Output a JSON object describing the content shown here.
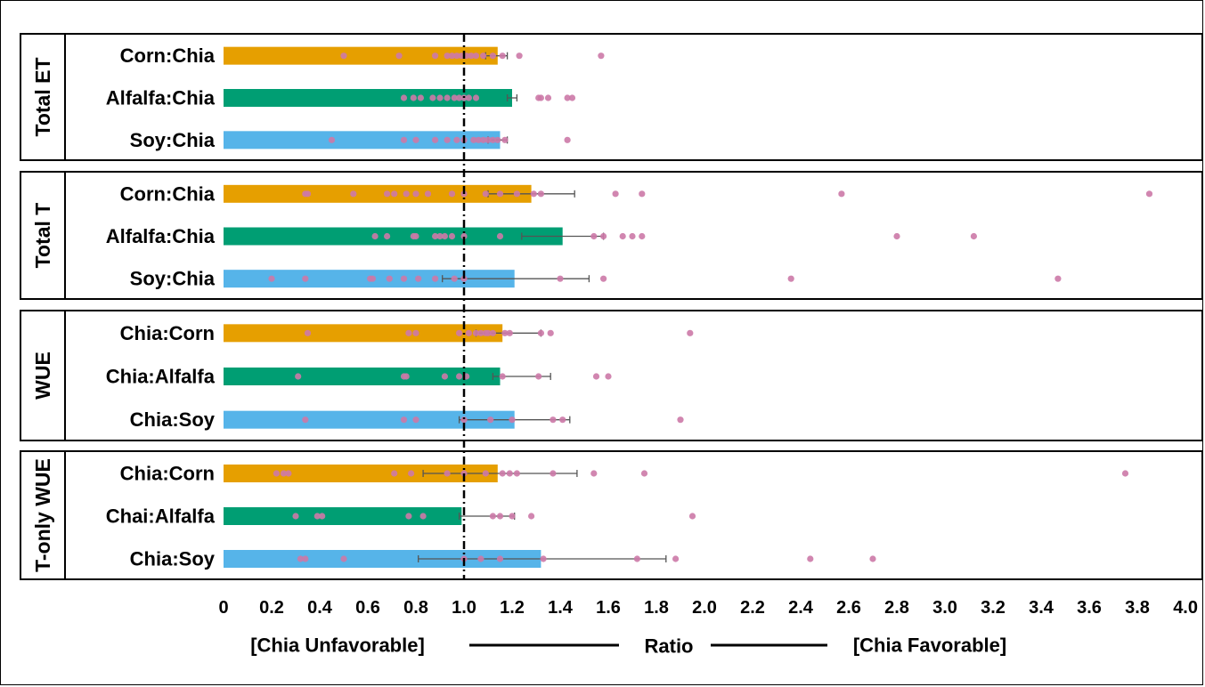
{
  "chart_data": {
    "type": "bar",
    "orientation": "horizontal",
    "xlim": [
      0,
      4.0
    ],
    "xticks": [
      "0",
      "0.2",
      "0.4",
      "0.6",
      "0.8",
      "1.0",
      "1.2",
      "1.4",
      "1.6",
      "1.8",
      "2.0",
      "2.2",
      "2.4",
      "2.6",
      "2.8",
      "3.0",
      "3.2",
      "3.4",
      "3.6",
      "3.8",
      "4.0"
    ],
    "reference_line": 1.0,
    "xlabel": "Ratio",
    "left_annotation": "[Chia Unfavorable]",
    "right_annotation": "[Chia Favorable]",
    "colors": {
      "corn": "#E69F00",
      "alfalfa": "#009E73",
      "soy": "#56B4E9",
      "points": "#CC79A7"
    },
    "panels": [
      {
        "title": "Total ET",
        "bars": [
          {
            "label": "Corn:Chia",
            "color": "corn",
            "value": 1.14,
            "err": [
              1.09,
              1.18
            ],
            "points": [
              0.5,
              0.73,
              0.88,
              0.93,
              0.95,
              0.97,
              0.99,
              1.01,
              1.03,
              1.05,
              1.08,
              1.12,
              1.16,
              1.23,
              1.57
            ]
          },
          {
            "label": "Alfalfa:Chia",
            "color": "alfalfa",
            "value": 1.2,
            "err": [
              1.18,
              1.22
            ],
            "points": [
              0.75,
              0.79,
              0.82,
              0.87,
              0.9,
              0.93,
              0.96,
              0.98,
              1.0,
              1.02,
              1.05,
              1.31,
              1.32,
              1.35,
              1.43,
              1.45
            ]
          },
          {
            "label": "Soy:Chia",
            "color": "soy",
            "value": 1.15,
            "err": [
              1.1,
              1.18
            ],
            "points": [
              0.45,
              0.75,
              0.8,
              0.88,
              0.93,
              0.97,
              1.0,
              1.04,
              1.06,
              1.08,
              1.1,
              1.12,
              1.14,
              1.17,
              1.43
            ]
          }
        ]
      },
      {
        "title": "Total T",
        "bars": [
          {
            "label": "Corn:Chia",
            "color": "corn",
            "value": 1.28,
            "err": [
              1.1,
              1.46
            ],
            "points": [
              0.34,
              0.35,
              0.54,
              0.68,
              0.71,
              0.76,
              0.8,
              0.85,
              0.95,
              1.0,
              1.09,
              1.15,
              1.22,
              1.29,
              1.32,
              1.63,
              1.74,
              2.57,
              3.85
            ]
          },
          {
            "label": "Alfalfa:Chia",
            "color": "alfalfa",
            "value": 1.41,
            "err": [
              1.24,
              1.58
            ],
            "points": [
              0.63,
              0.68,
              0.79,
              0.8,
              0.88,
              0.9,
              0.92,
              0.95,
              1.0,
              1.15,
              1.54,
              1.58,
              1.66,
              1.7,
              1.74,
              2.8,
              3.12
            ]
          },
          {
            "label": "Soy:Chia",
            "color": "soy",
            "value": 1.21,
            "err": [
              0.91,
              1.52
            ],
            "points": [
              0.2,
              0.34,
              0.61,
              0.62,
              0.69,
              0.75,
              0.81,
              0.88,
              0.96,
              1.0,
              1.4,
              1.58,
              2.36,
              3.47
            ]
          }
        ]
      },
      {
        "title": "WUE",
        "bars": [
          {
            "label": "Chia:Corn",
            "color": "corn",
            "value": 1.16,
            "err": [
              1.05,
              1.32
            ],
            "points": [
              0.35,
              0.77,
              0.8,
              0.98,
              1.02,
              1.05,
              1.07,
              1.09,
              1.1,
              1.12,
              1.17,
              1.19,
              1.32,
              1.36,
              1.94
            ]
          },
          {
            "label": "Chia:Alfalfa",
            "color": "alfalfa",
            "value": 1.15,
            "err": [
              1.12,
              1.36
            ],
            "points": [
              0.31,
              0.75,
              0.76,
              0.92,
              0.98,
              1.01,
              1.16,
              1.31,
              1.55,
              1.6
            ]
          },
          {
            "label": "Chia:Soy",
            "color": "soy",
            "value": 1.21,
            "err": [
              0.98,
              1.44
            ],
            "points": [
              0.34,
              0.75,
              0.8,
              1.0,
              1.11,
              1.2,
              1.37,
              1.41,
              1.9
            ]
          }
        ]
      },
      {
        "title": "T-only WUE",
        "bars": [
          {
            "label": "Chia:Corn",
            "color": "corn",
            "value": 1.14,
            "err": [
              0.83,
              1.47
            ],
            "points": [
              0.22,
              0.25,
              0.27,
              0.71,
              0.78,
              0.93,
              1.0,
              1.09,
              1.16,
              1.19,
              1.22,
              1.37,
              1.54,
              1.75,
              3.75
            ]
          },
          {
            "label": "Chai:Alfalfa",
            "color": "alfalfa",
            "value": 0.99,
            "err": [
              0.98,
              1.21
            ],
            "points": [
              0.3,
              0.39,
              0.41,
              0.77,
              0.83,
              1.12,
              1.15,
              1.2,
              1.28,
              1.95
            ]
          },
          {
            "label": "Chia:Soy",
            "color": "soy",
            "value": 1.32,
            "err": [
              0.81,
              1.84
            ],
            "points": [
              0.32,
              0.34,
              0.5,
              1.0,
              1.07,
              1.15,
              1.33,
              1.72,
              1.88,
              2.44,
              2.7
            ]
          }
        ]
      }
    ]
  }
}
